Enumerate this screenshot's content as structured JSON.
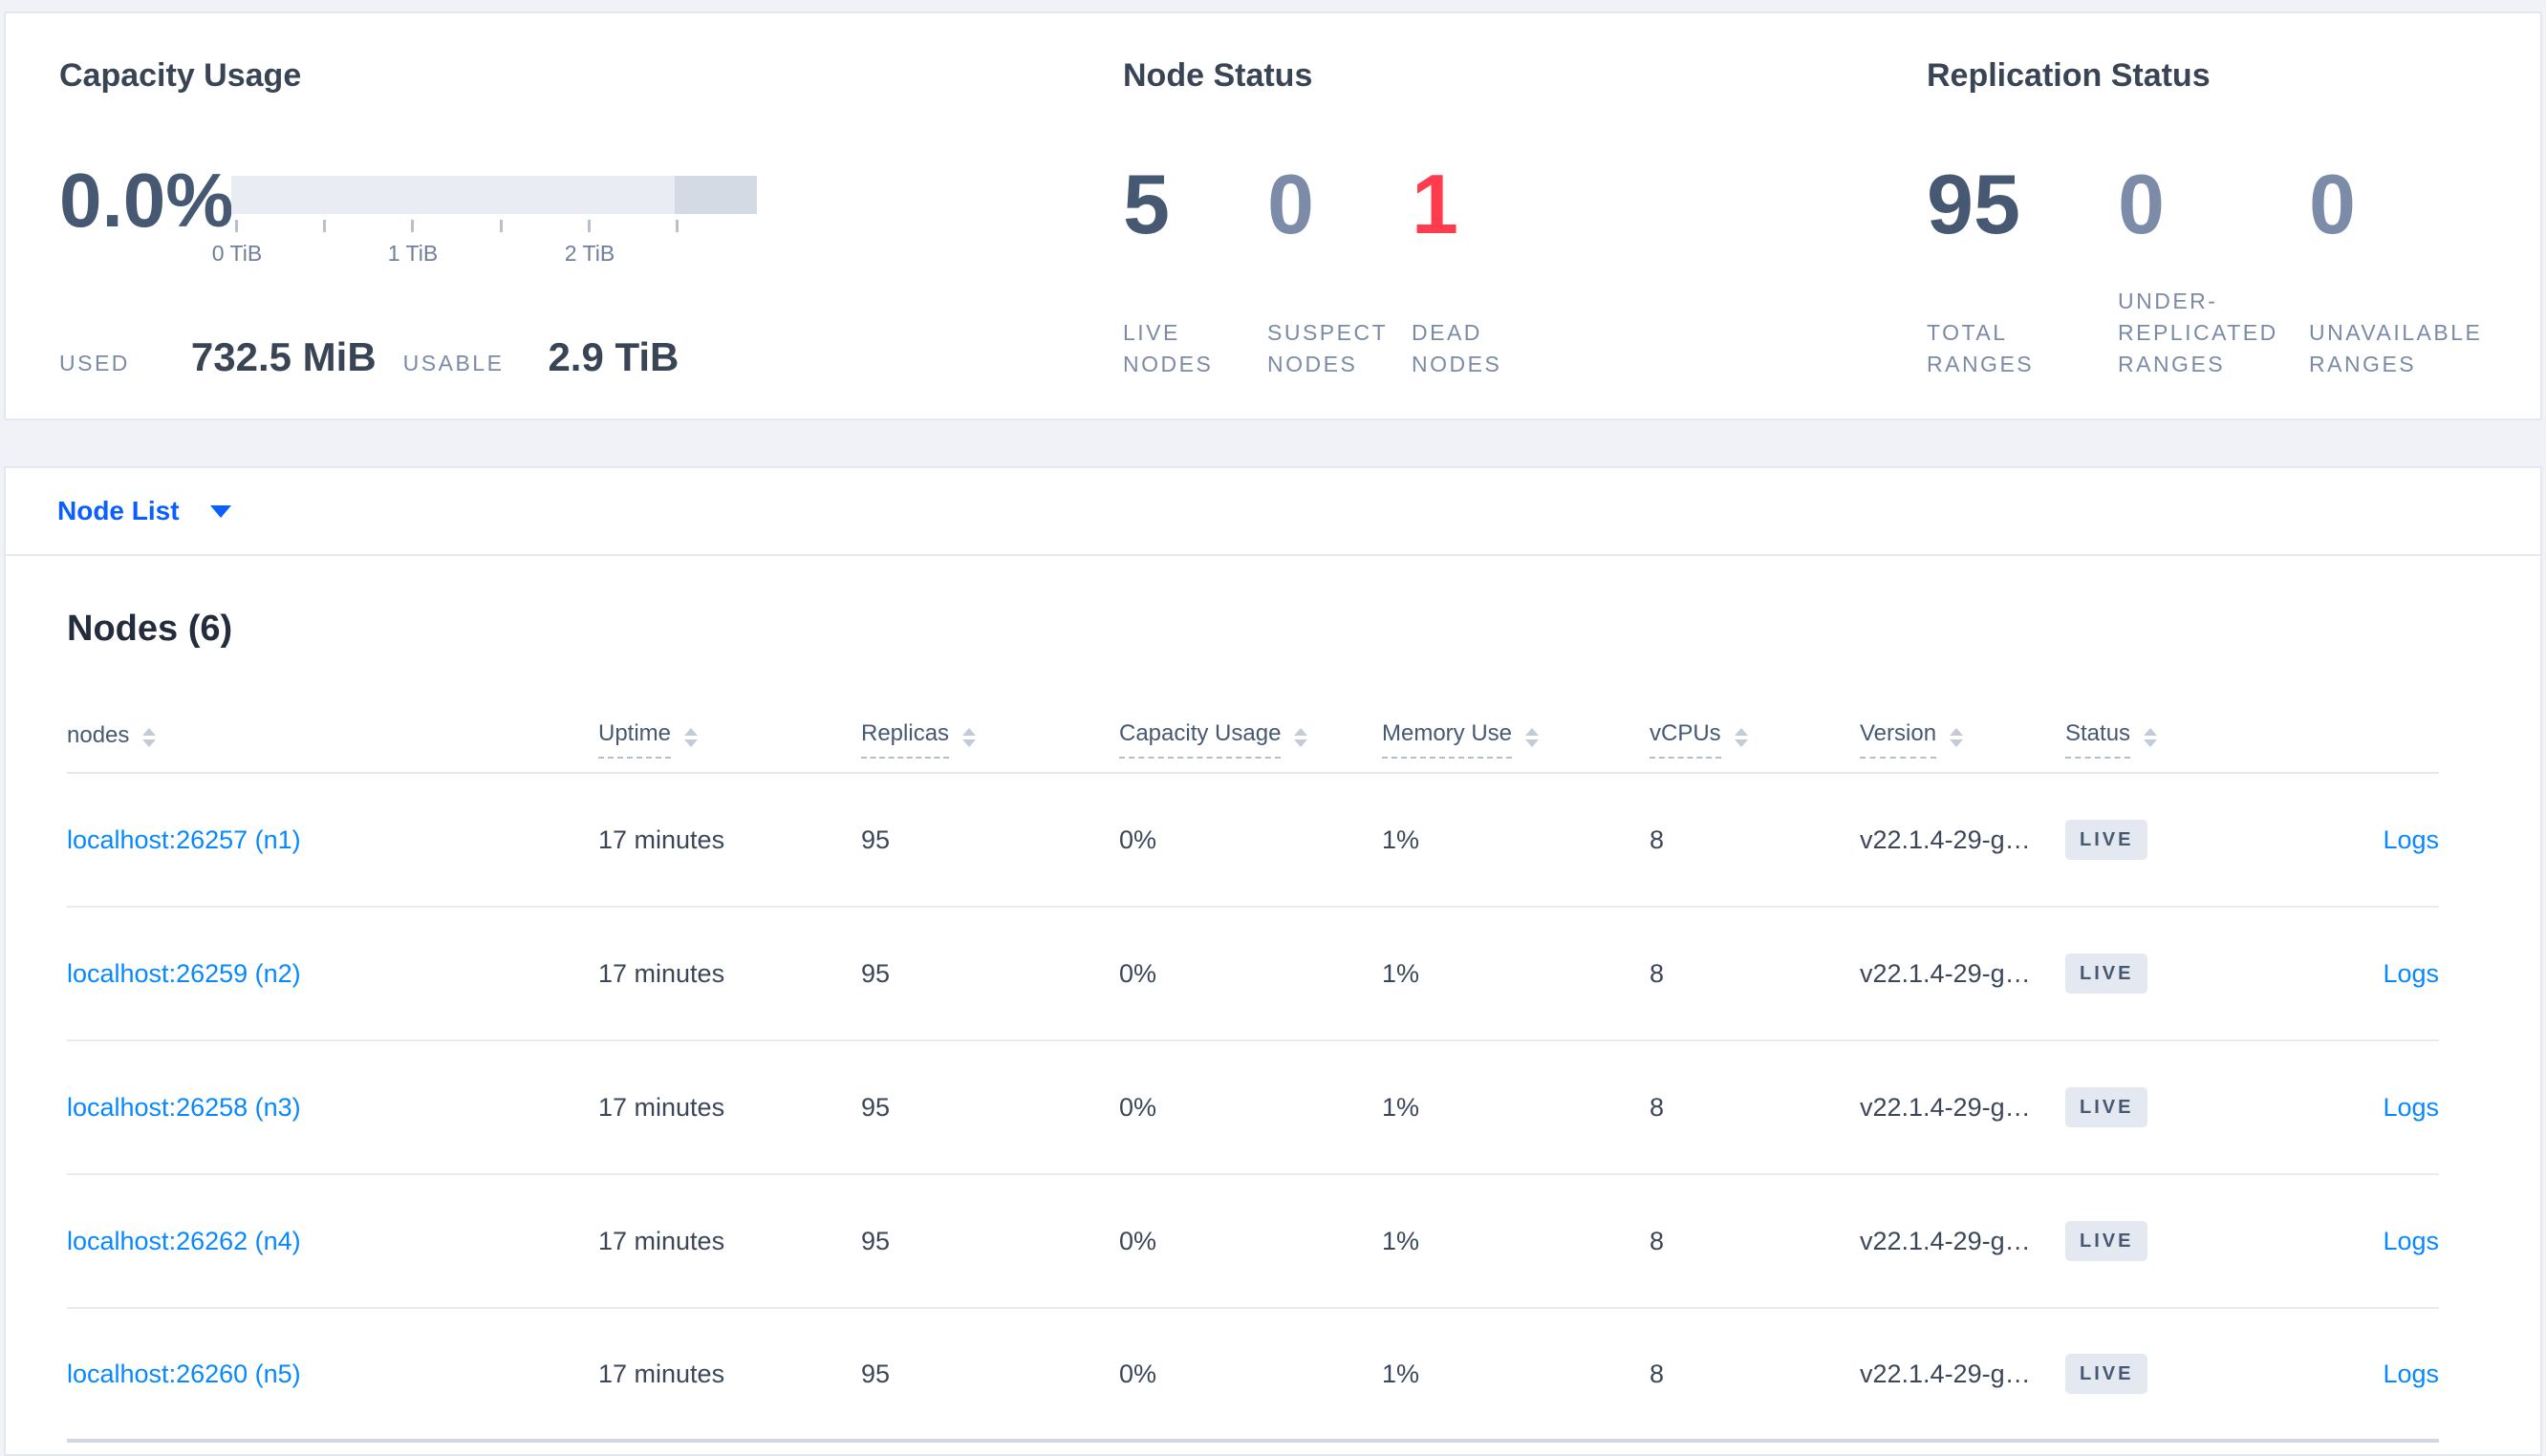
{
  "panels": {
    "capacity": {
      "title": "Capacity Usage",
      "percent": "0.0%",
      "ticks": [
        "0 TiB",
        "1 TiB",
        "2 TiB"
      ],
      "used_label": "USED",
      "used_value": "732.5 MiB",
      "usable_label": "USABLE",
      "usable_value": "2.9 TiB"
    },
    "node_status": {
      "title": "Node Status",
      "stats": [
        {
          "value": "5",
          "label": "LIVE\nNODES",
          "color": "dark"
        },
        {
          "value": "0",
          "label": "SUSPECT\nNODES",
          "color": "muted"
        },
        {
          "value": "1",
          "label": "DEAD\nNODES",
          "color": "red"
        }
      ]
    },
    "replication": {
      "title": "Replication Status",
      "stats": [
        {
          "value": "95",
          "label": "TOTAL\nRANGES",
          "color": "dark"
        },
        {
          "value": "0",
          "label": "UNDER-\nREPLICATED\nRANGES",
          "color": "muted"
        },
        {
          "value": "0",
          "label": "UNAVAILABLE\nRANGES",
          "color": "muted"
        }
      ]
    }
  },
  "view_selector": {
    "label": "Node List"
  },
  "table": {
    "title": "Nodes (6)",
    "columns": [
      {
        "label": "nodes",
        "sortable": true,
        "underline": false
      },
      {
        "label": "Uptime",
        "sortable": true,
        "underline": true
      },
      {
        "label": "Replicas",
        "sortable": true,
        "underline": true
      },
      {
        "label": "Capacity Usage",
        "sortable": true,
        "underline": true
      },
      {
        "label": "Memory Use",
        "sortable": true,
        "underline": true
      },
      {
        "label": "vCPUs",
        "sortable": true,
        "underline": true
      },
      {
        "label": "Version",
        "sortable": true,
        "underline": true
      },
      {
        "label": "Status",
        "sortable": true,
        "underline": true
      },
      {
        "label": "",
        "sortable": false,
        "underline": false
      }
    ],
    "rows": [
      {
        "node": "localhost:26257 (n1)",
        "uptime": "17 minutes",
        "replicas": "95",
        "capacity": "0%",
        "memory": "1%",
        "vcpus": "8",
        "version": "v22.1.4-29-g…",
        "status": "LIVE",
        "logs": "Logs"
      },
      {
        "node": "localhost:26259 (n2)",
        "uptime": "17 minutes",
        "replicas": "95",
        "capacity": "0%",
        "memory": "1%",
        "vcpus": "8",
        "version": "v22.1.4-29-g…",
        "status": "LIVE",
        "logs": "Logs"
      },
      {
        "node": "localhost:26258 (n3)",
        "uptime": "17 minutes",
        "replicas": "95",
        "capacity": "0%",
        "memory": "1%",
        "vcpus": "8",
        "version": "v22.1.4-29-g…",
        "status": "LIVE",
        "logs": "Logs"
      },
      {
        "node": "localhost:26262 (n4)",
        "uptime": "17 minutes",
        "replicas": "95",
        "capacity": "0%",
        "memory": "1%",
        "vcpus": "8",
        "version": "v22.1.4-29-g…",
        "status": "LIVE",
        "logs": "Logs"
      },
      {
        "node": "localhost:26260 (n5)",
        "uptime": "17 minutes",
        "replicas": "95",
        "capacity": "0%",
        "memory": "1%",
        "vcpus": "8",
        "version": "v22.1.4-29-g…",
        "status": "LIVE",
        "logs": "Logs"
      }
    ]
  },
  "colors": {
    "accent_blue": "#0b5fff",
    "link_blue": "#0788ff",
    "stat_dark": "#475872",
    "stat_muted": "#7b8ba8",
    "stat_red": "#ff3b4e",
    "badge_bg": "#e4e9f1"
  }
}
